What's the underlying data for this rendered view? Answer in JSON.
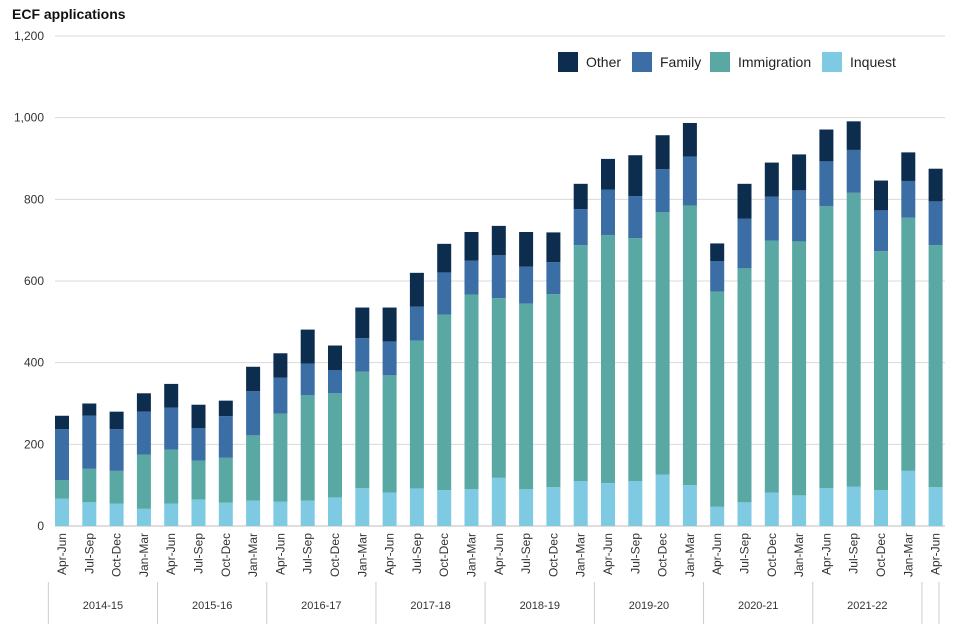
{
  "chart_data": {
    "type": "bar",
    "stacked": true,
    "title": "ECF applications",
    "xlabel": "",
    "ylabel": "",
    "ylim": [
      0,
      1200
    ],
    "yticks": [
      0,
      200,
      400,
      600,
      800,
      1000,
      1200
    ],
    "ytick_labels": [
      "0",
      "200",
      "400",
      "600",
      "800",
      "1,000",
      "1,200"
    ],
    "grid": true,
    "legend_position": "top-right",
    "categories": [
      "Apr-Jun",
      "Jul-Sep",
      "Oct-Dec",
      "Jan-Mar",
      "Apr-Jun",
      "Jul-Sep",
      "Oct-Dec",
      "Jan-Mar",
      "Apr-Jun",
      "Jul-Sep",
      "Oct-Dec",
      "Jan-Mar",
      "Apr-Jun",
      "Jul-Sep",
      "Oct-Dec",
      "Jan-Mar",
      "Apr-Jun",
      "Jul-Sep",
      "Oct-Dec",
      "Jan-Mar",
      "Apr-Jun",
      "Jul-Sep",
      "Oct-Dec",
      "Jan-Mar",
      "Apr-Jun",
      "Jul-Sep",
      "Oct-Dec",
      "Jan-Mar",
      "Apr-Jun",
      "Jul-Sep",
      "Oct-Dec",
      "Jan-Mar",
      "Apr-Jun"
    ],
    "groups": [
      {
        "label": "2014-15",
        "count": 4
      },
      {
        "label": "2015-16",
        "count": 4
      },
      {
        "label": "2016-17",
        "count": 4
      },
      {
        "label": "2017-18",
        "count": 4
      },
      {
        "label": "2018-19",
        "count": 4
      },
      {
        "label": "2019-20",
        "count": 4
      },
      {
        "label": "2020-21",
        "count": 4
      },
      {
        "label": "2021-22",
        "count": 4
      },
      {
        "label": "",
        "count": 1
      }
    ],
    "series": [
      {
        "name": "Inquest",
        "color": "#7ecae3",
        "values": [
          67,
          58,
          55,
          42,
          55,
          65,
          57,
          62,
          60,
          62,
          70,
          93,
          82,
          92,
          88,
          90,
          118,
          90,
          95,
          110,
          105,
          110,
          126,
          100,
          47,
          58,
          82,
          75,
          93,
          96,
          88,
          135,
          95
        ]
      },
      {
        "name": "Immigration",
        "color": "#5aa8a4",
        "values": [
          45,
          82,
          80,
          133,
          132,
          95,
          110,
          160,
          215,
          258,
          255,
          285,
          287,
          362,
          430,
          477,
          440,
          455,
          473,
          578,
          607,
          595,
          643,
          685,
          527,
          573,
          617,
          622,
          690,
          720,
          585,
          620,
          593
        ]
      },
      {
        "name": "Family",
        "color": "#3a6ea5",
        "values": [
          125,
          130,
          102,
          105,
          103,
          80,
          102,
          108,
          88,
          78,
          57,
          82,
          83,
          83,
          103,
          83,
          105,
          90,
          78,
          88,
          112,
          103,
          105,
          120,
          75,
          122,
          108,
          125,
          110,
          105,
          100,
          90,
          107
        ]
      },
      {
        "name": "Other",
        "color": "#0d2d4e",
        "values": [
          33,
          30,
          43,
          45,
          58,
          57,
          38,
          60,
          60,
          83,
          60,
          75,
          83,
          83,
          70,
          70,
          72,
          85,
          73,
          62,
          75,
          100,
          83,
          82,
          43,
          85,
          83,
          88,
          78,
          70,
          73,
          70,
          80
        ]
      }
    ],
    "legend_order": [
      "Other",
      "Family",
      "Immigration",
      "Inquest"
    ]
  }
}
